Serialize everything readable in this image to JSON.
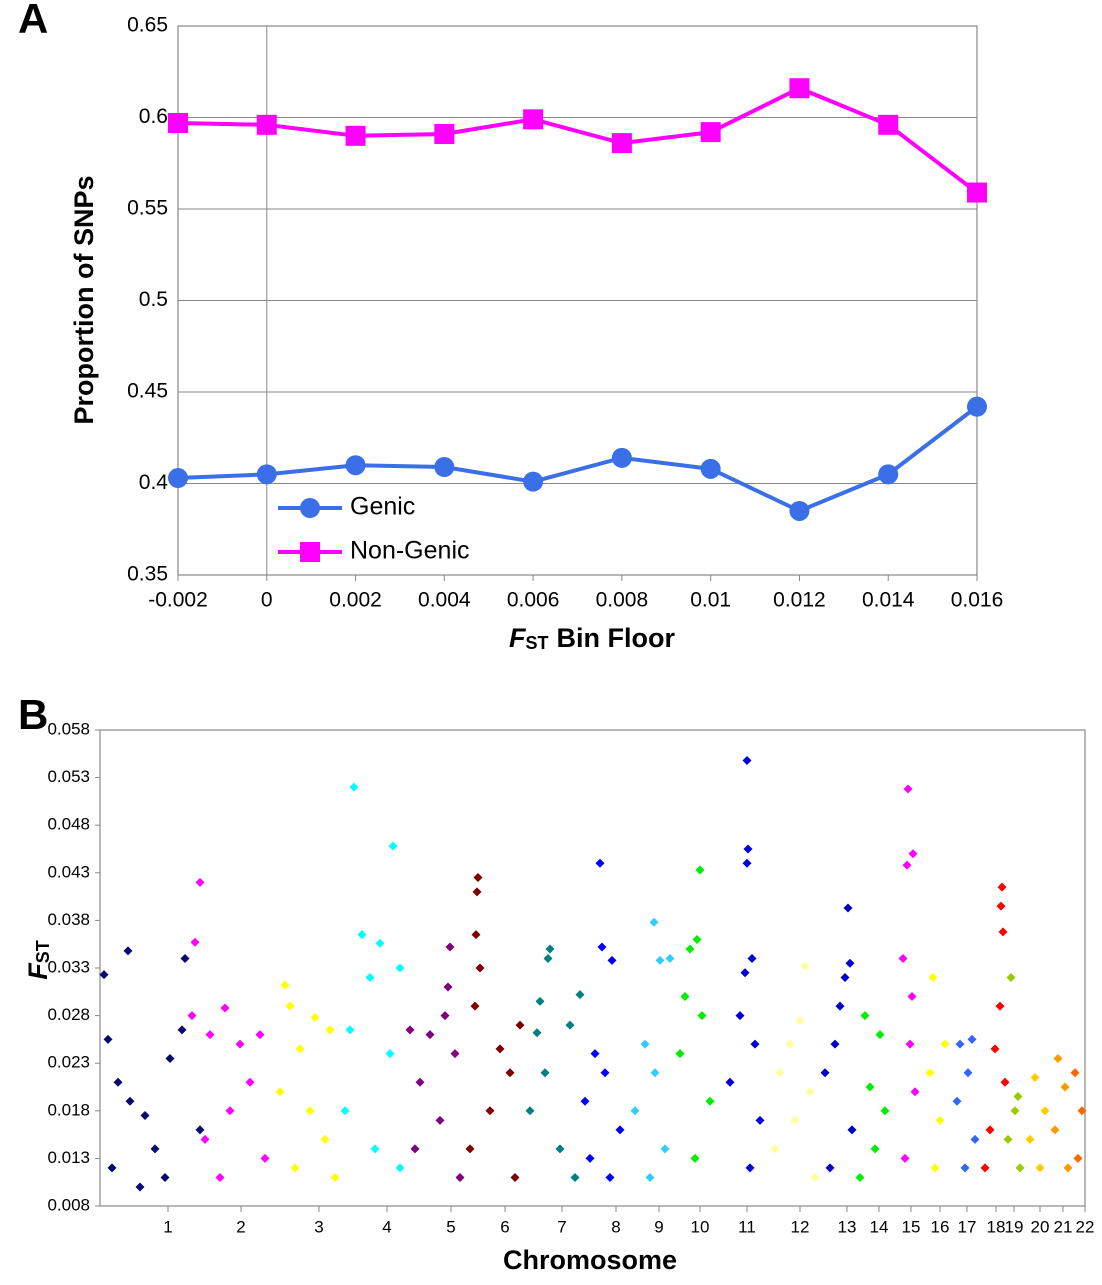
{
  "chart_data": [
    {
      "type": "line",
      "panel_label": "A",
      "ylabel": "Proportion of SNPs",
      "xlabel": {
        "symbol": "F",
        "subscript": "ST",
        "text": "Bin Floor"
      },
      "x": [
        -0.002,
        0,
        0.002,
        0.004,
        0.006,
        0.008,
        0.01,
        0.012,
        0.014,
        0.016
      ],
      "xlim": [
        -0.002,
        0.016
      ],
      "xticks": [
        -0.002,
        0,
        0.002,
        0.004,
        0.006,
        0.008,
        0.01,
        0.012,
        0.014,
        0.016
      ],
      "ylim": [
        0.35,
        0.65
      ],
      "yticks": [
        0.35,
        0.4,
        0.45,
        0.5,
        0.55,
        0.6,
        0.65
      ],
      "grid": true,
      "legend": "lower left",
      "series": [
        {
          "name": "Genic",
          "color": "#3a6fe8",
          "marker": "circle",
          "values": [
            0.403,
            0.405,
            0.41,
            0.409,
            0.401,
            0.414,
            0.408,
            0.385,
            0.405,
            0.442
          ]
        },
        {
          "name": "Non-Genic",
          "color": "#ff00ff",
          "marker": "square",
          "values": [
            0.597,
            0.596,
            0.59,
            0.591,
            0.599,
            0.586,
            0.592,
            0.616,
            0.596,
            0.559
          ]
        }
      ]
    },
    {
      "type": "scatter",
      "panel_label": "B",
      "ylabel": {
        "symbol": "F",
        "subscript": "ST"
      },
      "xlabel": "Chromosome",
      "xlim": [
        0,
        985
      ],
      "xticks": [
        {
          "value": 68,
          "label": "1"
        },
        {
          "value": 141,
          "label": "2"
        },
        {
          "value": 219,
          "label": "3"
        },
        {
          "value": 287,
          "label": "4"
        },
        {
          "value": 351,
          "label": "5"
        },
        {
          "value": 405,
          "label": "6"
        },
        {
          "value": 462,
          "label": "7"
        },
        {
          "value": 516,
          "label": "8"
        },
        {
          "value": 559,
          "label": "9"
        },
        {
          "value": 600,
          "label": "10"
        },
        {
          "value": 647,
          "label": "11"
        },
        {
          "value": 700,
          "label": "12"
        },
        {
          "value": 747,
          "label": "13"
        },
        {
          "value": 779,
          "label": "14"
        },
        {
          "value": 811,
          "label": "15"
        },
        {
          "value": 840,
          "label": "16"
        },
        {
          "value": 867,
          "label": "17"
        },
        {
          "value": 896,
          "label": "18"
        },
        {
          "value": 914,
          "label": "19"
        },
        {
          "value": 940,
          "label": "20"
        },
        {
          "value": 963,
          "label": "21"
        },
        {
          "value": 985,
          "label": "22"
        }
      ],
      "ylim": [
        0.008,
        0.058
      ],
      "yticks": [
        0.008,
        0.013,
        0.018,
        0.023,
        0.028,
        0.033,
        0.038,
        0.043,
        0.048,
        0.053,
        0.058
      ],
      "grid": false,
      "series": [
        {
          "color": "#0a0a6e",
          "x": [
            4,
            8,
            28,
            18,
            45,
            85,
            82,
            70,
            55,
            30,
            100,
            12,
            65,
            40
          ],
          "values": [
            0.0323,
            0.0255,
            0.0348,
            0.021,
            0.0175,
            0.034,
            0.0265,
            0.0235,
            0.014,
            0.019,
            0.016,
            0.012,
            0.011,
            0.01
          ]
        },
        {
          "color": "#ff00ff",
          "x": [
            100,
            95,
            92,
            125,
            110,
            140,
            160,
            150,
            130,
            105,
            165,
            120
          ],
          "values": [
            0.042,
            0.0357,
            0.028,
            0.0288,
            0.026,
            0.025,
            0.026,
            0.021,
            0.018,
            0.015,
            0.013,
            0.011
          ]
        },
        {
          "color": "#ffff00",
          "x": [
            185,
            190,
            215,
            200,
            230,
            180,
            210,
            225,
            195,
            235
          ],
          "values": [
            0.0312,
            0.029,
            0.0278,
            0.0245,
            0.0265,
            0.02,
            0.018,
            0.015,
            0.012,
            0.011
          ]
        },
        {
          "color": "#00ffff",
          "x": [
            254,
            262,
            293,
            280,
            300,
            270,
            250,
            290,
            245,
            275,
            300
          ],
          "values": [
            0.052,
            0.0365,
            0.0458,
            0.0356,
            0.033,
            0.032,
            0.0265,
            0.024,
            0.018,
            0.014,
            0.012
          ]
        },
        {
          "color": "#800080",
          "x": [
            350,
            348,
            345,
            330,
            310,
            355,
            320,
            340,
            315,
            360
          ],
          "values": [
            0.0352,
            0.031,
            0.028,
            0.026,
            0.0265,
            0.024,
            0.021,
            0.017,
            0.014,
            0.011
          ]
        },
        {
          "color": "#800000",
          "x": [
            378,
            377,
            376,
            380,
            375,
            420,
            400,
            410,
            390,
            370,
            415
          ],
          "values": [
            0.0425,
            0.041,
            0.0365,
            0.033,
            0.029,
            0.027,
            0.0245,
            0.022,
            0.018,
            0.014,
            0.011
          ]
        },
        {
          "color": "#008080",
          "x": [
            450,
            448,
            440,
            437,
            480,
            470,
            445,
            430,
            460,
            475
          ],
          "values": [
            0.035,
            0.034,
            0.0295,
            0.0262,
            0.0302,
            0.027,
            0.022,
            0.018,
            0.014,
            0.011
          ]
        },
        {
          "color": "#0000ff",
          "x": [
            500,
            502,
            512,
            495,
            505,
            485,
            520,
            490,
            510
          ],
          "values": [
            0.044,
            0.0352,
            0.0338,
            0.024,
            0.022,
            0.019,
            0.016,
            0.013,
            0.011
          ]
        },
        {
          "color": "#33ccff",
          "x": [
            554,
            560,
            570,
            545,
            555,
            535,
            565,
            550
          ],
          "values": [
            0.0378,
            0.0338,
            0.034,
            0.025,
            0.022,
            0.018,
            0.014,
            0.011
          ]
        },
        {
          "color": "#00ee00",
          "x": [
            600,
            597,
            590,
            585,
            602,
            580,
            610,
            595
          ],
          "values": [
            0.0433,
            0.036,
            0.035,
            0.03,
            0.028,
            0.024,
            0.019,
            0.013
          ]
        },
        {
          "color": "#0000dd",
          "x": [
            647,
            648,
            647,
            652,
            645,
            640,
            655,
            630,
            660,
            650
          ],
          "values": [
            0.0548,
            0.0455,
            0.044,
            0.034,
            0.0325,
            0.028,
            0.025,
            0.021,
            0.017,
            0.012
          ]
        },
        {
          "color": "#ffff99",
          "x": [
            705,
            700,
            690,
            680,
            710,
            695,
            675,
            715
          ],
          "values": [
            0.0332,
            0.0275,
            0.025,
            0.022,
            0.02,
            0.017,
            0.014,
            0.011
          ]
        },
        {
          "color": "#0000cc",
          "x": [
            748,
            750,
            745,
            740,
            735,
            725,
            752,
            730
          ],
          "values": [
            0.0393,
            0.0335,
            0.032,
            0.029,
            0.025,
            0.022,
            0.016,
            0.012
          ]
        },
        {
          "color": "#00ee00",
          "x": [
            765,
            780,
            770,
            785,
            775,
            760
          ],
          "values": [
            0.028,
            0.026,
            0.0205,
            0.018,
            0.014,
            0.011
          ]
        },
        {
          "color": "#ff00ff",
          "x": [
            808,
            813,
            807,
            803,
            812,
            810,
            815,
            805
          ],
          "values": [
            0.0518,
            0.045,
            0.0438,
            0.034,
            0.03,
            0.025,
            0.02,
            0.013
          ]
        },
        {
          "color": "#ffff00",
          "x": [
            833,
            845,
            830,
            840,
            835
          ],
          "values": [
            0.032,
            0.025,
            0.022,
            0.017,
            0.012
          ]
        },
        {
          "color": "#3366ff",
          "x": [
            860,
            872,
            868,
            857,
            875,
            865
          ],
          "values": [
            0.025,
            0.0255,
            0.022,
            0.019,
            0.015,
            0.012
          ]
        },
        {
          "color": "#ff0000",
          "x": [
            902,
            901,
            903,
            900,
            895,
            905,
            890,
            885
          ],
          "values": [
            0.0415,
            0.0395,
            0.0368,
            0.029,
            0.0245,
            0.021,
            0.016,
            0.012
          ]
        },
        {
          "color": "#99cc00",
          "x": [
            911,
            918,
            915,
            908,
            920
          ],
          "values": [
            0.032,
            0.0195,
            0.018,
            0.015,
            0.012
          ]
        },
        {
          "color": "#ffcc00",
          "x": [
            935,
            945,
            930,
            940
          ],
          "values": [
            0.0215,
            0.018,
            0.015,
            0.012
          ]
        },
        {
          "color": "#ff9900",
          "x": [
            958,
            965,
            955,
            968
          ],
          "values": [
            0.0235,
            0.0205,
            0.016,
            0.012
          ]
        },
        {
          "color": "#ff6600",
          "x": [
            975,
            982,
            978
          ],
          "values": [
            0.022,
            0.018,
            0.013
          ]
        }
      ]
    }
  ]
}
